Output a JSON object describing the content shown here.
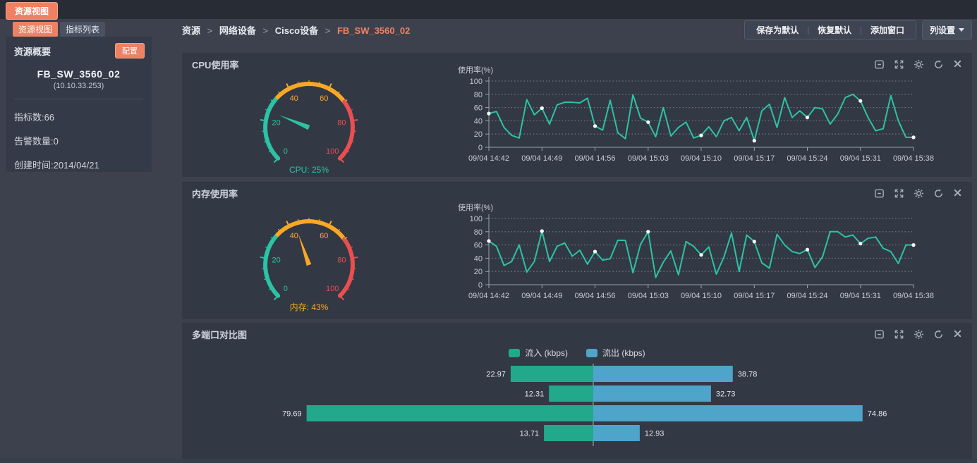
{
  "topbar": {
    "main_tab": "资源视图"
  },
  "subtabs": [
    {
      "label": "资源视图",
      "active": true
    },
    {
      "label": "指标列表",
      "active": false
    }
  ],
  "sidebar": {
    "title": "资源概要",
    "config_button": "配置",
    "device_name": "FB_SW_3560_02",
    "device_ip": "(10.10.33.253)",
    "stats": [
      "指标数:66",
      "告警数量:0",
      "创建时间:2014/04/21"
    ]
  },
  "breadcrumb": {
    "items": [
      "资源",
      "网络设备",
      "Cisco设备",
      "FB_SW_3560_02"
    ],
    "separator": ">"
  },
  "toolbar": {
    "buttons": [
      "保存为默认",
      "恢复默认",
      "添加窗口"
    ],
    "separator": "|",
    "column_settings": "列设置"
  },
  "panels": [
    {
      "title": "CPU使用率"
    },
    {
      "title": "内存使用率"
    },
    {
      "title": "多端口对比图"
    }
  ],
  "panel_icons": [
    "collapse",
    "fullscreen",
    "settings",
    "refresh",
    "close"
  ],
  "colors": {
    "accent": "#ee8164",
    "teal": "#2cc3a3",
    "orange": "#f9a825",
    "red": "#e94f4f",
    "bar_in": "#22a98b",
    "bar_out": "#4ea4c9"
  },
  "chart_data": [
    {
      "id": "cpu-gauge",
      "type": "gauge",
      "title": "CPU使用率",
      "value": 25,
      "min": 0,
      "max": 100,
      "label": "CPU: 25%",
      "zones": [
        {
          "to": 33,
          "color": "#2cc3a3"
        },
        {
          "to": 70,
          "color": "#f9a825"
        },
        {
          "to": 100,
          "color": "#e94f4f"
        }
      ],
      "tick_labels": [
        0,
        20,
        40,
        60,
        80,
        100
      ],
      "needle_color": "#2cc3a3",
      "label_color": "#2cc3a3"
    },
    {
      "id": "cpu-line",
      "type": "line",
      "title": "CPU使用率",
      "ylabel": "使用率(%)",
      "ylim": [
        0,
        100
      ],
      "yticks": [
        0,
        20,
        40,
        60,
        80,
        100
      ],
      "xticks": [
        "09/04 14:42",
        "09/04 14:49",
        "09/04 14:56",
        "09/04 15:03",
        "09/04 15:10",
        "09/04 15:17",
        "09/04 15:24",
        "09/04 15:31",
        "09/04 15:38"
      ],
      "color": "#2cc3a3",
      "marker_every": 7,
      "values": [
        51,
        54,
        30,
        18,
        14,
        72,
        49,
        59,
        35,
        64,
        68,
        68,
        67,
        74,
        32,
        26,
        71,
        22,
        13,
        79,
        44,
        38,
        16,
        60,
        17,
        30,
        38,
        14,
        18,
        31,
        16,
        40,
        45,
        25,
        45,
        10,
        55,
        65,
        30,
        75,
        45,
        55,
        45,
        60,
        58,
        35,
        50,
        75,
        80,
        70,
        45,
        25,
        28,
        78,
        40,
        15,
        15
      ]
    },
    {
      "id": "mem-gauge",
      "type": "gauge",
      "title": "内存使用率",
      "value": 43,
      "min": 0,
      "max": 100,
      "label": "内存: 43%",
      "zones": [
        {
          "to": 33,
          "color": "#2cc3a3"
        },
        {
          "to": 70,
          "color": "#f9a825"
        },
        {
          "to": 100,
          "color": "#e94f4f"
        }
      ],
      "tick_labels": [
        0,
        20,
        40,
        60,
        80,
        100
      ],
      "needle_color": "#f9a825",
      "label_color": "#f9a825"
    },
    {
      "id": "mem-line",
      "type": "line",
      "title": "内存使用率",
      "ylabel": "使用率(%)",
      "ylim": [
        0,
        100
      ],
      "yticks": [
        0,
        20,
        40,
        60,
        80,
        100
      ],
      "xticks": [
        "09/04 14:42",
        "09/04 14:49",
        "09/04 14:56",
        "09/04 15:03",
        "09/04 15:10",
        "09/04 15:17",
        "09/04 15:24",
        "09/04 15:31",
        "09/04 15:38"
      ],
      "color": "#2cc3a3",
      "marker_every": 7,
      "values": [
        66,
        58,
        29,
        35,
        60,
        19,
        35,
        81,
        35,
        58,
        63,
        43,
        52,
        31,
        50,
        37,
        39,
        67,
        67,
        18,
        61,
        80,
        11,
        34,
        51,
        15,
        65,
        58,
        45,
        57,
        16,
        42,
        78,
        20,
        75,
        65,
        33,
        25,
        76,
        60,
        50,
        47,
        53,
        26,
        42,
        80,
        80,
        72,
        75,
        62,
        70,
        72,
        55,
        50,
        32,
        60,
        60
      ]
    },
    {
      "id": "ports-bar",
      "type": "bar",
      "title": "多端口对比图",
      "orientation": "horizontal-diverging",
      "legend": [
        "流入 (kbps)",
        "流出 (kbps)"
      ],
      "series_colors": [
        "#22a98b",
        "#4ea4c9"
      ],
      "xmax": 80,
      "rows": [
        {
          "in": 22.97,
          "out": 38.78
        },
        {
          "in": 12.31,
          "out": 32.73
        },
        {
          "in": 79.69,
          "out": 74.86
        },
        {
          "in": 13.71,
          "out": 12.93
        }
      ]
    }
  ]
}
